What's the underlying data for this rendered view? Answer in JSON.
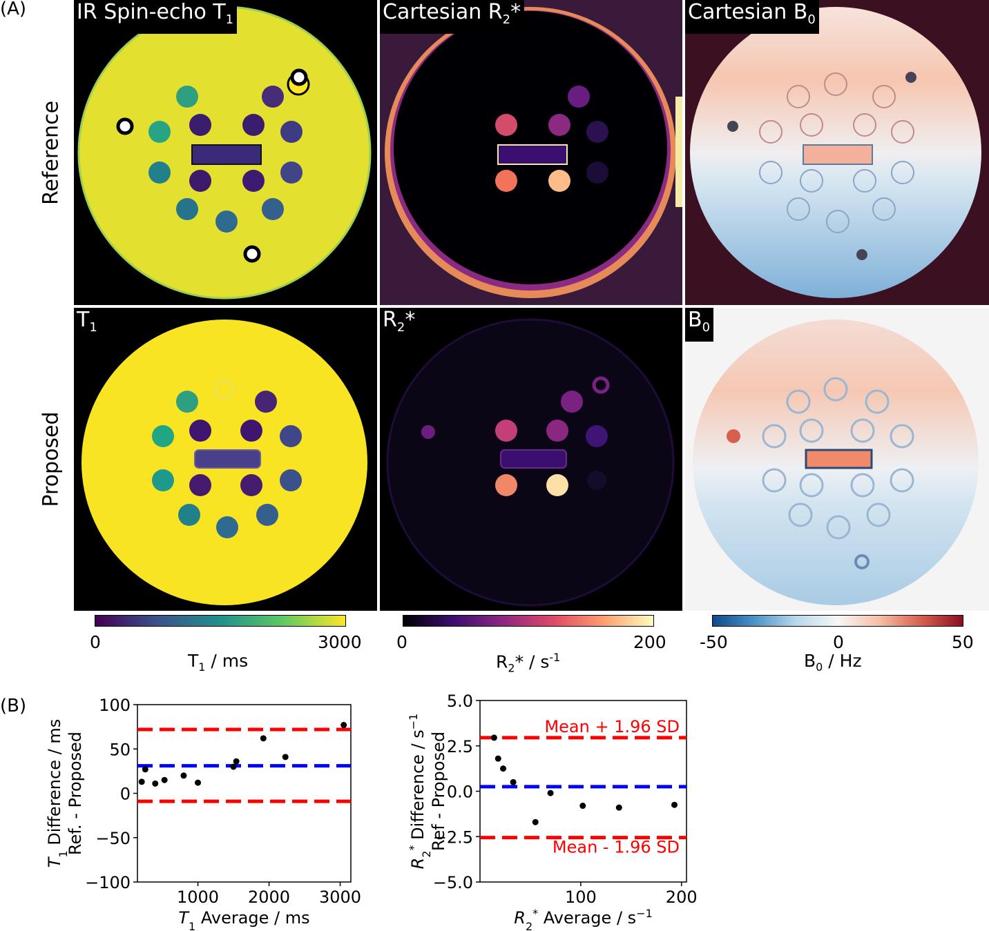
{
  "panel_labels": {
    "a": "(A)",
    "b": "(B)"
  },
  "rows": {
    "reference": "Reference",
    "proposed": "Proposed"
  },
  "map_titles": {
    "ref_t1": [
      "IR Spin-echo T",
      "1"
    ],
    "ref_r2": [
      "Cartesian R",
      "2",
      "*"
    ],
    "ref_b0": [
      "Cartesian B",
      "0"
    ],
    "prop_t1": [
      "T",
      "1"
    ],
    "prop_r2": [
      "R",
      "2",
      "*"
    ],
    "prop_b0": [
      "B",
      "0"
    ]
  },
  "colorbars": [
    {
      "name": "t1",
      "min": "0",
      "max": "3000",
      "label": [
        "T",
        "1",
        " / ms"
      ],
      "colors": [
        "#440154",
        "#3b528b",
        "#21918c",
        "#5ec962",
        "#fde725"
      ]
    },
    {
      "name": "r2",
      "min": "0",
      "max": "200",
      "label": [
        "R",
        "2",
        "* / s",
        "-1"
      ],
      "colors": [
        "#000004",
        "#3b0f70",
        "#8c2981",
        "#de4968",
        "#fe9f6d",
        "#fcfdbf"
      ]
    },
    {
      "name": "b0",
      "min": "-50",
      "mid": "0",
      "max": "50",
      "label": [
        "B",
        "0",
        " / Hz"
      ],
      "colors": [
        "#0d4a8a",
        "#4b93c6",
        "#b9d8ea",
        "#f7f7f7",
        "#f6bfa6",
        "#d6604d",
        "#8c0d25"
      ]
    }
  ],
  "colors": {
    "mean_line": "#0000ff",
    "limit_line": "#ff0000",
    "points": "#000000"
  },
  "chart_data": [
    {
      "type": "scatter",
      "title": "",
      "xlabel": [
        "T",
        "1",
        " Average / ms"
      ],
      "ylabel": [
        "T",
        "1",
        " Difference / ms"
      ],
      "ylabel2": "Ref. - Proposed",
      "xlim": [
        150,
        3150
      ],
      "ylim": [
        -100,
        100
      ],
      "xticks": [
        1000,
        2000,
        3000
      ],
      "yticks": [
        -100,
        -50,
        0,
        50,
        100
      ],
      "x": [
        210,
        260,
        400,
        530,
        800,
        1000,
        1500,
        1540,
        1920,
        2230,
        3050
      ],
      "y": [
        13,
        27,
        11,
        15,
        20,
        12,
        30,
        36,
        62,
        41,
        77
      ],
      "mean": 31,
      "upper_limit": 72,
      "lower_limit": -9
    },
    {
      "type": "scatter",
      "title": "",
      "xlabel": [
        "R",
        "2",
        "*",
        " Average / s",
        "−1"
      ],
      "ylabel": [
        "R",
        "2",
        "*",
        " Difference / s",
        "−1"
      ],
      "ylabel2": "Ref - Proposed",
      "xlim": [
        0,
        205
      ],
      "ylim": [
        -5.0,
        5.0
      ],
      "xticks": [
        100,
        200
      ],
      "yticks": [
        "5.0",
        "2.5",
        "0.0",
        "−2.5",
        "−5.0"
      ],
      "x": [
        14,
        18,
        23,
        33,
        55,
        70,
        102,
        138,
        193
      ],
      "y": [
        2.95,
        1.8,
        1.25,
        0.5,
        -1.7,
        -0.1,
        -0.8,
        -0.9,
        -0.75
      ],
      "mean": 0.25,
      "upper_limit": 2.95,
      "lower_limit": -2.55,
      "annotations": [
        "Mean + 1.96 SD",
        "Mean - 1.96 SD"
      ]
    }
  ]
}
